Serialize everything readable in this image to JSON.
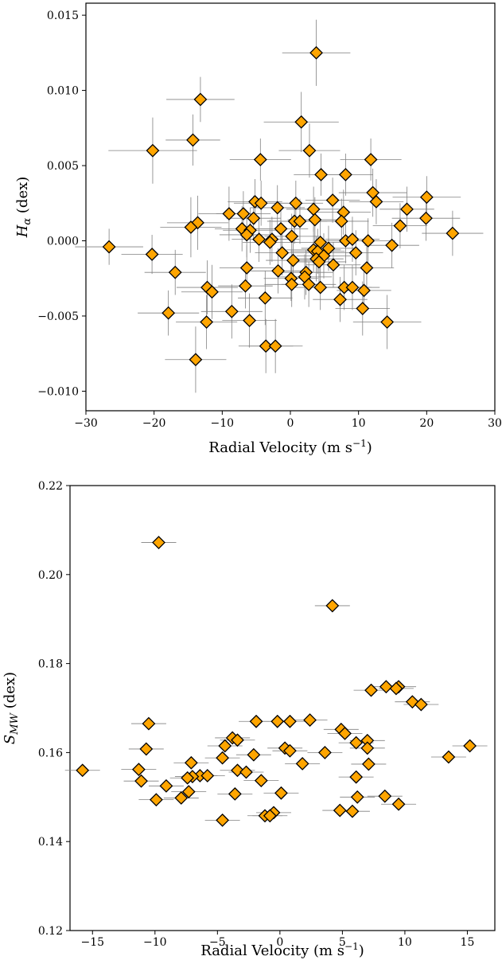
{
  "chart_data": [
    {
      "type": "scatter",
      "marker": "diamond",
      "marker_color": "#FFA500",
      "marker_edge": "#000000",
      "errorbar_color": "#808080",
      "xlabel": "Radial Velocity (m s⁻¹)",
      "ylabel": "Hα (dex)",
      "ylabel_main": "H",
      "ylabel_sub": "α",
      "ylabel_unit": " (dex)",
      "xlim": [
        -30,
        30
      ],
      "ylim": [
        -0.0113,
        0.0158
      ],
      "xticks": [
        -30,
        -20,
        -10,
        0,
        10,
        20,
        30
      ],
      "xtick_labels": [
        "−30",
        "−20",
        "−10",
        "0",
        "10",
        "20",
        "30"
      ],
      "yticks": [
        -0.01,
        -0.005,
        0.0,
        0.005,
        0.01,
        0.015
      ],
      "ytick_labels": [
        "−0.010",
        "−0.005",
        "0.000",
        "0.005",
        "0.010",
        "0.015"
      ],
      "grid": false,
      "points": [
        {
          "x": 3.8,
          "y": 0.0125,
          "xerr": 5.0,
          "yerr": 0.0022
        },
        {
          "x": -13.2,
          "y": 0.0094,
          "xerr": 5.0,
          "yerr": 0.0015
        },
        {
          "x": 1.6,
          "y": 0.0079,
          "xerr": 5.5,
          "yerr": 0.002
        },
        {
          "x": -14.3,
          "y": 0.0067,
          "xerr": 4.0,
          "yerr": 0.0017
        },
        {
          "x": -20.2,
          "y": 0.006,
          "xerr": 6.5,
          "yerr": 0.0022
        },
        {
          "x": 2.8,
          "y": 0.006,
          "xerr": 4.5,
          "yerr": 0.0018
        },
        {
          "x": -4.4,
          "y": 0.0054,
          "xerr": 4.5,
          "yerr": 0.0014
        },
        {
          "x": 11.8,
          "y": 0.0054,
          "xerr": 4.5,
          "yerr": 0.0014
        },
        {
          "x": 4.5,
          "y": 0.0044,
          "xerr": 4.0,
          "yerr": 0.0014
        },
        {
          "x": 8.1,
          "y": 0.0044,
          "xerr": 4.0,
          "yerr": 0.0014
        },
        {
          "x": 12.1,
          "y": 0.0032,
          "xerr": 5.0,
          "yerr": 0.0016
        },
        {
          "x": 20.0,
          "y": 0.0029,
          "xerr": 5.0,
          "yerr": 0.0014
        },
        {
          "x": 6.2,
          "y": 0.0027,
          "xerr": 4.0,
          "yerr": 0.0015
        },
        {
          "x": 12.6,
          "y": 0.0026,
          "xerr": 4.0,
          "yerr": 0.0015
        },
        {
          "x": -5.2,
          "y": 0.0026,
          "xerr": 4.0,
          "yerr": 0.0015
        },
        {
          "x": -4.3,
          "y": 0.0025,
          "xerr": 4.0,
          "yerr": 0.0015
        },
        {
          "x": 0.8,
          "y": 0.0025,
          "xerr": 4.0,
          "yerr": 0.0015
        },
        {
          "x": -1.9,
          "y": 0.0022,
          "xerr": 4.0,
          "yerr": 0.0015
        },
        {
          "x": 3.4,
          "y": 0.0021,
          "xerr": 4.0,
          "yerr": 0.0015
        },
        {
          "x": 17.1,
          "y": 0.0021,
          "xerr": 4.0,
          "yerr": 0.0015
        },
        {
          "x": 7.8,
          "y": 0.0019,
          "xerr": 4.0,
          "yerr": 0.0015
        },
        {
          "x": -9.0,
          "y": 0.0018,
          "xerr": 4.5,
          "yerr": 0.0018
        },
        {
          "x": -6.9,
          "y": 0.0018,
          "xerr": 4.0,
          "yerr": 0.0015
        },
        {
          "x": -5.4,
          "y": 0.0015,
          "xerr": 4.0,
          "yerr": 0.0015
        },
        {
          "x": 19.9,
          "y": 0.0015,
          "xerr": 5.0,
          "yerr": 0.0015
        },
        {
          "x": 3.6,
          "y": 0.0014,
          "xerr": 4.0,
          "yerr": 0.0015
        },
        {
          "x": 0.6,
          "y": 0.0013,
          "xerr": 4.0,
          "yerr": 0.0015
        },
        {
          "x": 7.5,
          "y": 0.0013,
          "xerr": 4.0,
          "yerr": 0.0015
        },
        {
          "x": -13.6,
          "y": 0.0012,
          "xerr": 4.5,
          "yerr": 0.0018
        },
        {
          "x": 1.4,
          "y": 0.0013,
          "xerr": 4.0,
          "yerr": 0.0015
        },
        {
          "x": 16.1,
          "y": 0.001,
          "xerr": 4.0,
          "yerr": 0.0015
        },
        {
          "x": -14.6,
          "y": 0.0009,
          "xerr": 4.5,
          "yerr": 0.002
        },
        {
          "x": -7.1,
          "y": 0.0008,
          "xerr": 4.0,
          "yerr": 0.0015
        },
        {
          "x": -1.4,
          "y": 0.0008,
          "xerr": 4.0,
          "yerr": 0.0015
        },
        {
          "x": -5.9,
          "y": 0.0007,
          "xerr": 4.0,
          "yerr": 0.0015
        },
        {
          "x": -6.4,
          "y": 0.0004,
          "xerr": 4.0,
          "yerr": 0.0015
        },
        {
          "x": 23.8,
          "y": 0.0005,
          "xerr": 4.5,
          "yerr": 0.0015
        },
        {
          "x": 0.2,
          "y": 0.0003,
          "xerr": 4.0,
          "yerr": 0.0015
        },
        {
          "x": -4.6,
          "y": 0.0001,
          "xerr": 4.0,
          "yerr": 0.0015
        },
        {
          "x": -2.7,
          "y": 0.0001,
          "xerr": 4.0,
          "yerr": 0.0015
        },
        {
          "x": 8.1,
          "y": 0.0,
          "xerr": 4.0,
          "yerr": 0.0015
        },
        {
          "x": 11.4,
          "y": 0.0,
          "xerr": 4.0,
          "yerr": 0.0015
        },
        {
          "x": 9.1,
          "y": 0.0001,
          "xerr": 4.0,
          "yerr": 0.0015
        },
        {
          "x": -3.0,
          "y": -0.0001,
          "xerr": 4.0,
          "yerr": 0.0015
        },
        {
          "x": 4.4,
          "y": -0.0001,
          "xerr": 4.0,
          "yerr": 0.0015
        },
        {
          "x": 14.9,
          "y": -0.0003,
          "xerr": 4.0,
          "yerr": 0.0015
        },
        {
          "x": -26.6,
          "y": -0.0004,
          "xerr": 5.0,
          "yerr": 0.0012
        },
        {
          "x": 5.6,
          "y": -0.0005,
          "xerr": 4.0,
          "yerr": 0.0015
        },
        {
          "x": 3.4,
          "y": -0.0006,
          "xerr": 4.0,
          "yerr": 0.0015
        },
        {
          "x": 4.0,
          "y": -0.0007,
          "xerr": 4.0,
          "yerr": 0.0015
        },
        {
          "x": 9.6,
          "y": -0.0008,
          "xerr": 4.0,
          "yerr": 0.0015
        },
        {
          "x": -1.2,
          "y": -0.0008,
          "xerr": 4.0,
          "yerr": 0.0015
        },
        {
          "x": -20.3,
          "y": -0.0009,
          "xerr": 4.5,
          "yerr": 0.0013
        },
        {
          "x": 4.9,
          "y": -0.001,
          "xerr": 4.0,
          "yerr": 0.0015
        },
        {
          "x": 3.8,
          "y": -0.0012,
          "xerr": 4.0,
          "yerr": 0.0015
        },
        {
          "x": 0.4,
          "y": -0.0013,
          "xerr": 4.0,
          "yerr": 0.0015
        },
        {
          "x": 4.2,
          "y": -0.0014,
          "xerr": 4.0,
          "yerr": 0.0015
        },
        {
          "x": 6.3,
          "y": -0.0016,
          "xerr": 4.0,
          "yerr": 0.0015
        },
        {
          "x": -6.4,
          "y": -0.0018,
          "xerr": 4.0,
          "yerr": 0.0015
        },
        {
          "x": 11.2,
          "y": -0.0018,
          "xerr": 4.0,
          "yerr": 0.0015
        },
        {
          "x": -1.8,
          "y": -0.002,
          "xerr": 4.0,
          "yerr": 0.0015
        },
        {
          "x": 2.3,
          "y": -0.0021,
          "xerr": 4.0,
          "yerr": 0.0015
        },
        {
          "x": -16.9,
          "y": -0.0021,
          "xerr": 4.5,
          "yerr": 0.0015
        },
        {
          "x": 0.1,
          "y": -0.0025,
          "xerr": 4.0,
          "yerr": 0.0015
        },
        {
          "x": 2.1,
          "y": -0.0024,
          "xerr": 4.0,
          "yerr": 0.0015
        },
        {
          "x": 0.2,
          "y": -0.0029,
          "xerr": 4.0,
          "yerr": 0.0015
        },
        {
          "x": 2.7,
          "y": -0.0029,
          "xerr": 4.0,
          "yerr": 0.0015
        },
        {
          "x": -6.6,
          "y": -0.003,
          "xerr": 4.0,
          "yerr": 0.0015
        },
        {
          "x": 4.4,
          "y": -0.0031,
          "xerr": 4.0,
          "yerr": 0.0015
        },
        {
          "x": 7.9,
          "y": -0.0031,
          "xerr": 4.0,
          "yerr": 0.0015
        },
        {
          "x": 9.1,
          "y": -0.0031,
          "xerr": 4.0,
          "yerr": 0.0015
        },
        {
          "x": -12.2,
          "y": -0.0031,
          "xerr": 4.5,
          "yerr": 0.0018
        },
        {
          "x": -11.5,
          "y": -0.0034,
          "xerr": 4.5,
          "yerr": 0.0018
        },
        {
          "x": 10.8,
          "y": -0.0033,
          "xerr": 4.0,
          "yerr": 0.0015
        },
        {
          "x": -3.7,
          "y": -0.0038,
          "xerr": 4.0,
          "yerr": 0.0018
        },
        {
          "x": 7.3,
          "y": -0.0039,
          "xerr": 4.0,
          "yerr": 0.0015
        },
        {
          "x": 10.6,
          "y": -0.0045,
          "xerr": 4.0,
          "yerr": 0.0018
        },
        {
          "x": -8.6,
          "y": -0.0047,
          "xerr": 4.5,
          "yerr": 0.0018
        },
        {
          "x": -17.9,
          "y": -0.0048,
          "xerr": 4.5,
          "yerr": 0.0015
        },
        {
          "x": -6.0,
          "y": -0.0053,
          "xerr": 4.0,
          "yerr": 0.0018
        },
        {
          "x": -12.3,
          "y": -0.0054,
          "xerr": 4.5,
          "yerr": 0.0018
        },
        {
          "x": 14.2,
          "y": -0.0054,
          "xerr": 5.0,
          "yerr": 0.0018
        },
        {
          "x": -3.6,
          "y": -0.007,
          "xerr": 4.0,
          "yerr": 0.0018
        },
        {
          "x": -2.2,
          "y": -0.007,
          "xerr": 4.0,
          "yerr": 0.0018
        },
        {
          "x": -13.9,
          "y": -0.0079,
          "xerr": 4.5,
          "yerr": 0.0022
        }
      ]
    },
    {
      "type": "scatter",
      "marker": "diamond",
      "marker_color": "#FFA500",
      "marker_edge": "#000000",
      "errorbar_color": "#808080",
      "xlabel": "Radial Velocity (m s⁻¹)",
      "ylabel": "S_MW (dex)",
      "ylabel_main": "S",
      "ylabel_sub": "MW",
      "ylabel_unit": " (dex)",
      "xlim": [
        -16.8,
        17.2
      ],
      "ylim": [
        0.12,
        0.22
      ],
      "xticks": [
        -15,
        -10,
        -5,
        0,
        5,
        10,
        15
      ],
      "xtick_labels": [
        "−15",
        "−10",
        "−5",
        "0",
        "5",
        "10",
        "15"
      ],
      "yticks": [
        0.12,
        0.14,
        0.16,
        0.18,
        0.2,
        0.22
      ],
      "ytick_labels": [
        "0.12",
        "0.14",
        "0.16",
        "0.18",
        "0.20",
        "0.22"
      ],
      "grid": false,
      "points": [
        {
          "x": -9.7,
          "y": 0.2072,
          "xerr": 1.4,
          "yerr": 0
        },
        {
          "x": 4.2,
          "y": 0.193,
          "xerr": 1.4,
          "yerr": 0
        },
        {
          "x": 8.5,
          "y": 0.1748,
          "xerr": 1.4,
          "yerr": 0
        },
        {
          "x": 9.5,
          "y": 0.1748,
          "xerr": 1.4,
          "yerr": 0
        },
        {
          "x": 9.3,
          "y": 0.1744,
          "xerr": 1.4,
          "yerr": 0
        },
        {
          "x": 7.3,
          "y": 0.174,
          "xerr": 1.4,
          "yerr": 0
        },
        {
          "x": 10.6,
          "y": 0.1714,
          "xerr": 1.4,
          "yerr": 0
        },
        {
          "x": 11.3,
          "y": 0.1708,
          "xerr": 1.4,
          "yerr": 0
        },
        {
          "x": 2.4,
          "y": 0.1673,
          "xerr": 1.4,
          "yerr": 0
        },
        {
          "x": -1.9,
          "y": 0.167,
          "xerr": 1.4,
          "yerr": 0
        },
        {
          "x": -0.2,
          "y": 0.167,
          "xerr": 1.4,
          "yerr": 0
        },
        {
          "x": 0.8,
          "y": 0.167,
          "xerr": 1.4,
          "yerr": 0
        },
        {
          "x": -10.5,
          "y": 0.1665,
          "xerr": 1.4,
          "yerr": 0
        },
        {
          "x": 4.9,
          "y": 0.1652,
          "xerr": 1.4,
          "yerr": 0
        },
        {
          "x": 5.2,
          "y": 0.1643,
          "xerr": 1.4,
          "yerr": 0
        },
        {
          "x": -3.8,
          "y": 0.1633,
          "xerr": 1.4,
          "yerr": 0
        },
        {
          "x": -3.4,
          "y": 0.1628,
          "xerr": 1.4,
          "yerr": 0
        },
        {
          "x": 7.0,
          "y": 0.1627,
          "xerr": 1.4,
          "yerr": 0
        },
        {
          "x": 6.1,
          "y": 0.1622,
          "xerr": 1.4,
          "yerr": 0
        },
        {
          "x": 15.2,
          "y": 0.1615,
          "xerr": 1.4,
          "yerr": 0
        },
        {
          "x": -4.4,
          "y": 0.1615,
          "xerr": 1.4,
          "yerr": 0
        },
        {
          "x": 0.4,
          "y": 0.161,
          "xerr": 1.4,
          "yerr": 0
        },
        {
          "x": 7.0,
          "y": 0.161,
          "xerr": 1.4,
          "yerr": 0
        },
        {
          "x": -10.7,
          "y": 0.1608,
          "xerr": 1.4,
          "yerr": 0
        },
        {
          "x": 0.8,
          "y": 0.1604,
          "xerr": 1.4,
          "yerr": 0
        },
        {
          "x": 3.6,
          "y": 0.16,
          "xerr": 1.4,
          "yerr": 0
        },
        {
          "x": -2.1,
          "y": 0.1595,
          "xerr": 1.4,
          "yerr": 0
        },
        {
          "x": 13.5,
          "y": 0.159,
          "xerr": 1.4,
          "yerr": 0
        },
        {
          "x": -4.6,
          "y": 0.1588,
          "xerr": 1.4,
          "yerr": 0
        },
        {
          "x": -7.1,
          "y": 0.1577,
          "xerr": 1.4,
          "yerr": 0
        },
        {
          "x": 1.8,
          "y": 0.1575,
          "xerr": 1.4,
          "yerr": 0
        },
        {
          "x": 7.1,
          "y": 0.1574,
          "xerr": 1.4,
          "yerr": 0
        },
        {
          "x": -15.8,
          "y": 0.156,
          "xerr": 1.4,
          "yerr": 0
        },
        {
          "x": -3.4,
          "y": 0.156,
          "xerr": 1.4,
          "yerr": 0
        },
        {
          "x": -11.3,
          "y": 0.1562,
          "xerr": 1.4,
          "yerr": 0
        },
        {
          "x": -2.7,
          "y": 0.1556,
          "xerr": 1.4,
          "yerr": 0
        },
        {
          "x": -6.4,
          "y": 0.1548,
          "xerr": 1.4,
          "yerr": 0
        },
        {
          "x": -7.0,
          "y": 0.1546,
          "xerr": 1.4,
          "yerr": 0
        },
        {
          "x": -5.8,
          "y": 0.1548,
          "xerr": 1.4,
          "yerr": 0
        },
        {
          "x": -7.4,
          "y": 0.1543,
          "xerr": 1.4,
          "yerr": 0
        },
        {
          "x": -11.1,
          "y": 0.1536,
          "xerr": 1.4,
          "yerr": 0
        },
        {
          "x": -1.5,
          "y": 0.1537,
          "xerr": 1.4,
          "yerr": 0
        },
        {
          "x": 6.1,
          "y": 0.1545,
          "xerr": 1.4,
          "yerr": 0
        },
        {
          "x": -9.1,
          "y": 0.1525,
          "xerr": 1.4,
          "yerr": 0
        },
        {
          "x": -7.3,
          "y": 0.1512,
          "xerr": 1.4,
          "yerr": 0
        },
        {
          "x": -3.6,
          "y": 0.1507,
          "xerr": 1.4,
          "yerr": 0
        },
        {
          "x": 0.1,
          "y": 0.1509,
          "xerr": 1.4,
          "yerr": 0
        },
        {
          "x": -7.9,
          "y": 0.1498,
          "xerr": 1.4,
          "yerr": 0
        },
        {
          "x": -9.9,
          "y": 0.1494,
          "xerr": 1.4,
          "yerr": 0
        },
        {
          "x": 6.2,
          "y": 0.15,
          "xerr": 1.4,
          "yerr": 0
        },
        {
          "x": 8.4,
          "y": 0.1502,
          "xerr": 1.4,
          "yerr": 0
        },
        {
          "x": 9.5,
          "y": 0.1484,
          "xerr": 1.4,
          "yerr": 0
        },
        {
          "x": 4.8,
          "y": 0.147,
          "xerr": 1.4,
          "yerr": 0
        },
        {
          "x": 5.8,
          "y": 0.1468,
          "xerr": 1.4,
          "yerr": 0
        },
        {
          "x": -0.5,
          "y": 0.1465,
          "xerr": 1.4,
          "yerr": 0
        },
        {
          "x": -1.2,
          "y": 0.1458,
          "xerr": 1.4,
          "yerr": 0
        },
        {
          "x": -0.8,
          "y": 0.1458,
          "xerr": 1.4,
          "yerr": 0
        },
        {
          "x": -4.6,
          "y": 0.1448,
          "xerr": 1.4,
          "yerr": 0
        }
      ]
    }
  ]
}
